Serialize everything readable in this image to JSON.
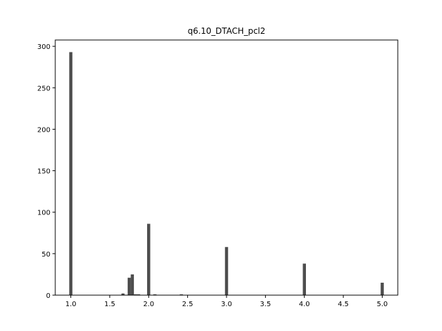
{
  "chart_data": {
    "type": "bar",
    "title": "q6.10_DTACH_pcl2",
    "xlabel": "",
    "ylabel": "",
    "xlim": [
      0.8,
      5.2
    ],
    "ylim": [
      0,
      307.6
    ],
    "bin_width": 0.04,
    "bar_color": "#4d4d4d",
    "xticks": [
      1.0,
      1.5,
      2.0,
      2.5,
      3.0,
      3.5,
      4.0,
      4.5,
      5.0
    ],
    "xtick_labels": [
      "1.0",
      "1.5",
      "2.0",
      "2.5",
      "3.0",
      "3.5",
      "4.0",
      "4.5",
      "5.0"
    ],
    "yticks": [
      0,
      50,
      100,
      150,
      200,
      250,
      300
    ],
    "ytick_labels": [
      "0",
      "50",
      "100",
      "150",
      "200",
      "250",
      "300"
    ],
    "grid": false,
    "bins": [
      {
        "x": 1.0,
        "count": 293
      },
      {
        "x": 1.67,
        "count": 2
      },
      {
        "x": 1.75,
        "count": 21
      },
      {
        "x": 1.79,
        "count": 25
      },
      {
        "x": 1.83,
        "count": 1
      },
      {
        "x": 1.87,
        "count": 1
      },
      {
        "x": 2.0,
        "count": 86
      },
      {
        "x": 2.08,
        "count": 1
      },
      {
        "x": 2.42,
        "count": 1
      },
      {
        "x": 3.0,
        "count": 58
      },
      {
        "x": 4.0,
        "count": 38
      },
      {
        "x": 5.0,
        "count": 15
      }
    ]
  }
}
